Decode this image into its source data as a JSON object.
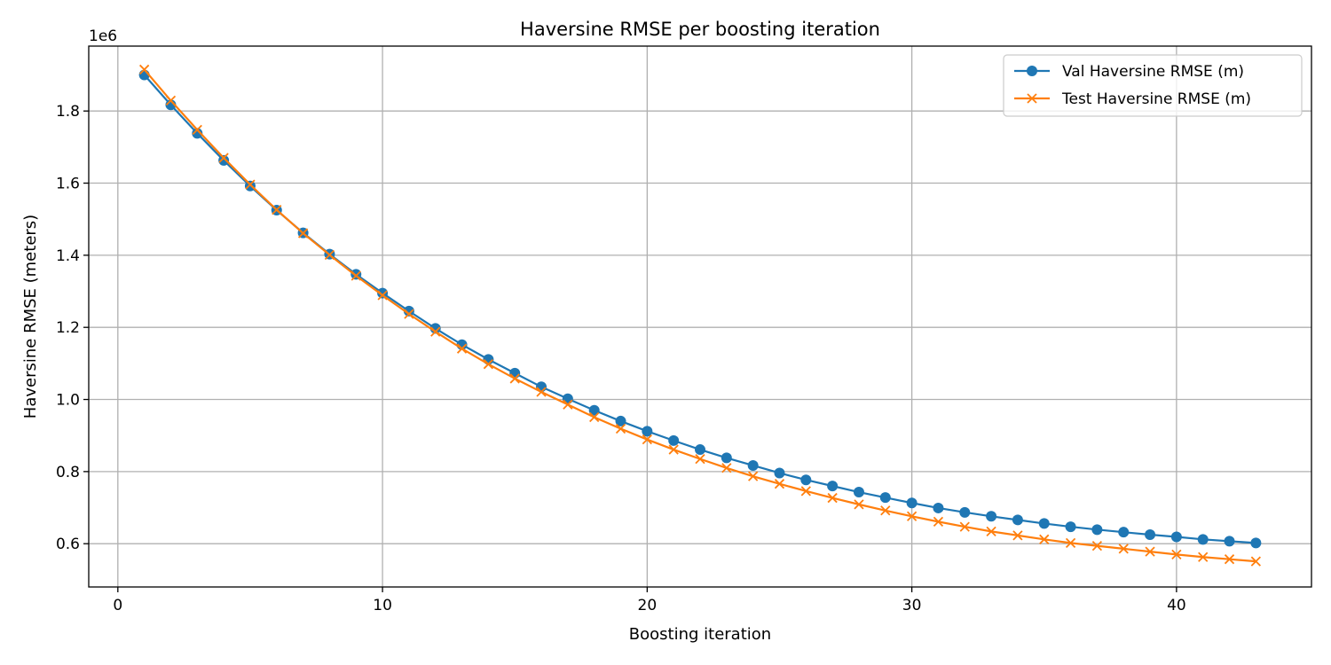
{
  "chart_data": {
    "type": "line",
    "title": "Haversine RMSE per boosting iteration",
    "xlabel": "Boosting iteration",
    "ylabel": "Haversine RMSE (meters)",
    "y_offset_label": "1e6",
    "xlim": [
      -1.1,
      45.1
    ],
    "ylim": [
      0.48,
      1.98
    ],
    "xticks": [
      0,
      10,
      20,
      30,
      40
    ],
    "yticks": [
      0.6,
      0.8,
      1.0,
      1.2,
      1.4,
      1.6,
      1.8
    ],
    "ytick_labels": [
      "0.6",
      "0.8",
      "1.0",
      "1.2",
      "1.4",
      "1.6",
      "1.8"
    ],
    "grid": true,
    "legend_position": "top-right",
    "x": [
      1,
      2,
      3,
      4,
      5,
      6,
      7,
      8,
      9,
      10,
      11,
      12,
      13,
      14,
      15,
      16,
      17,
      18,
      19,
      20,
      21,
      22,
      23,
      24,
      25,
      26,
      27,
      28,
      29,
      30,
      31,
      32,
      33,
      34,
      35,
      36,
      37,
      38,
      39,
      40,
      41,
      42,
      43
    ],
    "series": [
      {
        "name": "Val Haversine RMSE (m)",
        "color": "#1f77b4",
        "marker": "circle",
        "values": [
          1.9,
          1.817,
          1.738,
          1.663,
          1.592,
          1.525,
          1.462,
          1.403,
          1.347,
          1.295,
          1.245,
          1.197,
          1.152,
          1.111,
          1.073,
          1.035,
          1.002,
          0.97,
          0.94,
          0.912,
          0.886,
          0.861,
          0.838,
          0.817,
          0.796,
          0.777,
          0.76,
          0.743,
          0.728,
          0.713,
          0.699,
          0.687,
          0.676,
          0.666,
          0.656,
          0.647,
          0.639,
          0.632,
          0.625,
          0.619,
          0.612,
          0.607,
          0.602
        ]
      },
      {
        "name": "Test Haversine RMSE (m)",
        "color": "#ff7f0e",
        "marker": "x",
        "values": [
          1.915,
          1.829,
          1.748,
          1.67,
          1.596,
          1.526,
          1.461,
          1.401,
          1.343,
          1.289,
          1.237,
          1.188,
          1.141,
          1.098,
          1.058,
          1.021,
          0.986,
          0.951,
          0.919,
          0.889,
          0.861,
          0.835,
          0.81,
          0.787,
          0.766,
          0.746,
          0.727,
          0.709,
          0.692,
          0.676,
          0.661,
          0.647,
          0.634,
          0.623,
          0.612,
          0.602,
          0.594,
          0.586,
          0.578,
          0.57,
          0.563,
          0.557,
          0.551
        ]
      }
    ]
  }
}
